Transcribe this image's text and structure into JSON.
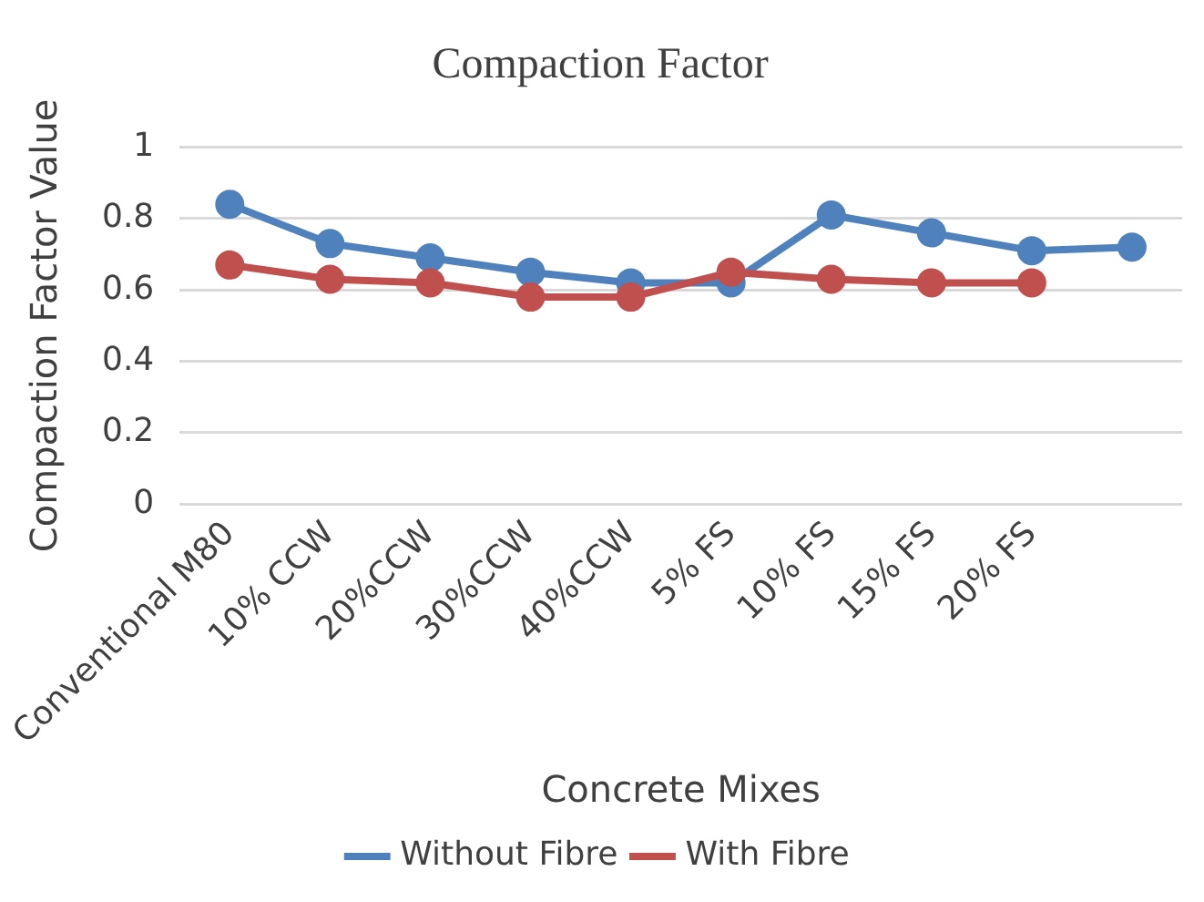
{
  "chart_data": {
    "type": "line",
    "title": "Compaction Factor",
    "xlabel": "Concrete Mixes",
    "ylabel": "Compaction Factor Value",
    "categories": [
      "Conventional M80",
      "10% CCW",
      "20%CCW",
      "30%CCW",
      "40%CCW",
      "5% FS",
      "10% FS",
      "15% FS",
      "20% FS",
      null
    ],
    "series": [
      {
        "name": "Without Fibre",
        "color": "#4f81bd",
        "values": [
          0.84,
          0.73,
          0.69,
          0.65,
          0.62,
          0.62,
          0.81,
          0.76,
          0.71,
          0.72
        ]
      },
      {
        "name": "With Fibre",
        "color": "#c0504d",
        "values": [
          0.67,
          0.63,
          0.62,
          0.58,
          0.58,
          0.65,
          0.63,
          0.62,
          0.62,
          null
        ]
      }
    ],
    "ylim": [
      0,
      1
    ],
    "yticks": [
      0,
      0.2,
      0.4,
      0.6,
      0.8,
      1
    ],
    "grid": "y",
    "legend": "bottom",
    "marker": "circle",
    "line_style": "solid"
  }
}
